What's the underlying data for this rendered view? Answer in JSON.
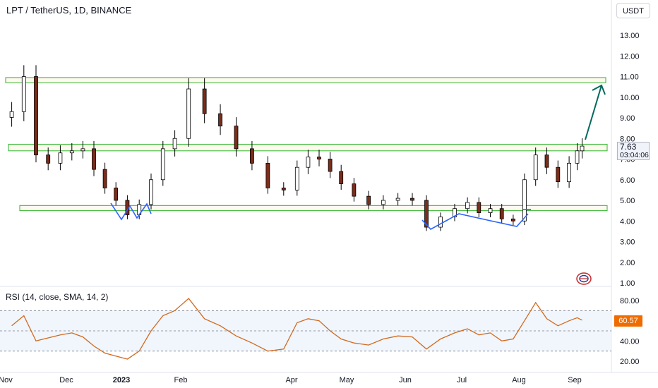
{
  "header": {
    "title": "LPT / TetherUS, 1D, BINANCE",
    "currency_button": "USDT"
  },
  "price_tag": {
    "price": "7.63",
    "countdown": "03:04:06"
  },
  "rsi": {
    "label": "RSI (14, close, SMA, 14, 2)",
    "value": "60.57"
  },
  "colors": {
    "up_candle": "#ffffff",
    "down_candle": "#7b2d1a",
    "candle_border": "#000000",
    "zone_fill": "#fff8ef",
    "zone_border": "#2fb52f",
    "pattern_line": "#2962ff",
    "projection_arrow": "#00695c",
    "rsi_line": "#d2691e",
    "rsi_band": "#f0f6fc",
    "rsi_value_tag": "#ef6c00"
  },
  "chart_data": [
    {
      "type": "candlestick",
      "title": "LPT / TetherUS, 1D, BINANCE",
      "x_ticks": [
        "Nov",
        "Dec",
        "2023",
        "Feb",
        "Apr",
        "May",
        "Jun",
        "Jul",
        "Aug",
        "Sep"
      ],
      "y_ticks": [
        "13.00",
        "12.00",
        "11.00",
        "10.00",
        "9.00",
        "8.00",
        "7.00",
        "6.00",
        "5.00",
        "4.00",
        "3.00",
        "2.00",
        "1.00"
      ],
      "ylim": [
        1.0,
        13.0
      ],
      "series": [
        {
          "values": [
            {
              "x": "Nov",
              "close": 9.3
            },
            {
              "x": "Nov",
              "close": 11.0
            },
            {
              "x": "Nov",
              "close": 7.2
            },
            {
              "x": "Nov",
              "close": 6.8
            },
            {
              "x": "Nov",
              "close": 7.3
            },
            {
              "x": "Dec",
              "close": 7.4
            },
            {
              "x": "Dec",
              "close": 7.5
            },
            {
              "x": "Dec",
              "close": 6.5
            },
            {
              "x": "Dec",
              "close": 5.6
            },
            {
              "x": "Dec",
              "close": 5.0
            },
            {
              "x": "2023",
              "close": 4.3
            },
            {
              "x": "2023",
              "close": 4.8
            },
            {
              "x": "2023",
              "close": 6.0
            },
            {
              "x": "2023",
              "close": 7.5
            },
            {
              "x": "2023",
              "close": 8.0
            },
            {
              "x": "Feb",
              "close": 10.4
            },
            {
              "x": "Feb",
              "close": 9.2
            },
            {
              "x": "Feb",
              "close": 8.6
            },
            {
              "x": "Feb",
              "close": 7.5
            },
            {
              "x": "Feb",
              "close": 6.8
            },
            {
              "x": "Feb",
              "close": 5.6
            },
            {
              "x": "Feb",
              "close": 5.5
            },
            {
              "x": "Apr",
              "close": 6.6
            },
            {
              "x": "Apr",
              "close": 7.1
            },
            {
              "x": "Apr",
              "close": 7.0
            },
            {
              "x": "Apr",
              "close": 6.4
            },
            {
              "x": "Apr",
              "close": 5.8
            },
            {
              "x": "May",
              "close": 5.2
            },
            {
              "x": "May",
              "close": 4.8
            },
            {
              "x": "May",
              "close": 5.0
            },
            {
              "x": "May",
              "close": 5.1
            },
            {
              "x": "Jun",
              "close": 5.0
            },
            {
              "x": "Jun",
              "close": 3.7
            },
            {
              "x": "Jun",
              "close": 4.2
            },
            {
              "x": "Jun",
              "close": 4.6
            },
            {
              "x": "Jul",
              "close": 4.9
            },
            {
              "x": "Jul",
              "close": 4.4
            },
            {
              "x": "Jul",
              "close": 4.6
            },
            {
              "x": "Jul",
              "close": 4.1
            },
            {
              "x": "Jul",
              "close": 4.0
            },
            {
              "x": "Aug",
              "close": 6.0
            },
            {
              "x": "Aug",
              "close": 7.2
            },
            {
              "x": "Aug",
              "close": 6.6
            },
            {
              "x": "Aug",
              "close": 5.9
            },
            {
              "x": "Aug",
              "close": 6.8
            },
            {
              "x": "Sep",
              "close": 7.4
            },
            {
              "x": "Sep",
              "close": 7.63
            }
          ]
        }
      ],
      "horizontal_zones": [
        [
          10.7,
          10.95
        ],
        [
          7.4,
          7.72
        ],
        [
          4.5,
          4.75
        ]
      ],
      "last_price": 7.63
    },
    {
      "type": "line",
      "title": "RSI (14, close, SMA, 14, 2)",
      "y_ticks": [
        "80.00",
        "60.00",
        "40.00",
        "20.00"
      ],
      "ylim": [
        15,
        90
      ],
      "bands": [
        70,
        50,
        30
      ],
      "series": [
        {
          "values": [
            {
              "x": "Nov",
              "y": 55
            },
            {
              "x": "Nov",
              "y": 65
            },
            {
              "x": "Nov",
              "y": 40
            },
            {
              "x": "Nov",
              "y": 43
            },
            {
              "x": "Nov",
              "y": 46
            },
            {
              "x": "Dec",
              "y": 48
            },
            {
              "x": "Dec",
              "y": 44
            },
            {
              "x": "Dec",
              "y": 35
            },
            {
              "x": "Dec",
              "y": 28
            },
            {
              "x": "Dec",
              "y": 25
            },
            {
              "x": "2023",
              "y": 22
            },
            {
              "x": "2023",
              "y": 30
            },
            {
              "x": "2023",
              "y": 50
            },
            {
              "x": "2023",
              "y": 65
            },
            {
              "x": "2023",
              "y": 70
            },
            {
              "x": "Feb",
              "y": 82
            },
            {
              "x": "Feb",
              "y": 62
            },
            {
              "x": "Feb",
              "y": 55
            },
            {
              "x": "Feb",
              "y": 45
            },
            {
              "x": "Feb",
              "y": 38
            },
            {
              "x": "Feb",
              "y": 30
            },
            {
              "x": "Feb",
              "y": 32
            },
            {
              "x": "Apr",
              "y": 58
            },
            {
              "x": "Apr",
              "y": 62
            },
            {
              "x": "Apr",
              "y": 60
            },
            {
              "x": "Apr",
              "y": 50
            },
            {
              "x": "Apr",
              "y": 42
            },
            {
              "x": "May",
              "y": 38
            },
            {
              "x": "May",
              "y": 36
            },
            {
              "x": "May",
              "y": 42
            },
            {
              "x": "May",
              "y": 45
            },
            {
              "x": "Jun",
              "y": 44
            },
            {
              "x": "Jun",
              "y": 32
            },
            {
              "x": "Jun",
              "y": 42
            },
            {
              "x": "Jun",
              "y": 48
            },
            {
              "x": "Jul",
              "y": 52
            },
            {
              "x": "Jul",
              "y": 46
            },
            {
              "x": "Jul",
              "y": 48
            },
            {
              "x": "Jul",
              "y": 40
            },
            {
              "x": "Jul",
              "y": 42
            },
            {
              "x": "Aug",
              "y": 60
            },
            {
              "x": "Aug",
              "y": 78
            },
            {
              "x": "Aug",
              "y": 62
            },
            {
              "x": "Aug",
              "y": 55
            },
            {
              "x": "Aug",
              "y": 60
            },
            {
              "x": "Sep",
              "y": 63
            },
            {
              "x": "Sep",
              "y": 60.57
            }
          ]
        }
      ]
    }
  ]
}
